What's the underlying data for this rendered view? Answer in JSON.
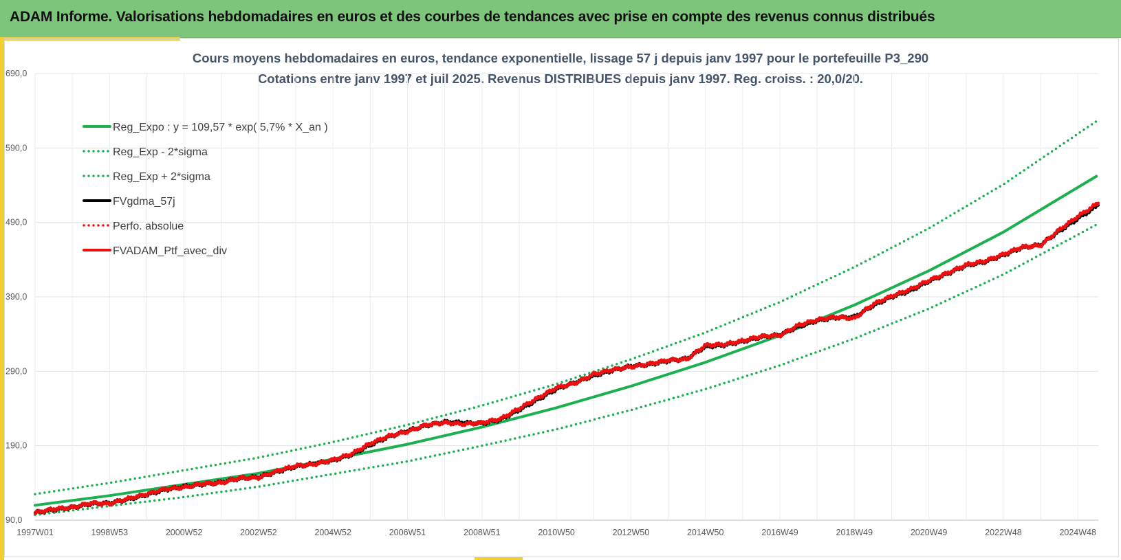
{
  "header": {
    "title": "ADAM Informe. Valorisations hebdomadaires en euros et des courbes de tendances avec prise en compte des revenus connus distribués"
  },
  "colors": {
    "banner": "#7dc57a",
    "accent": "#f2cf2f",
    "trend": "#1db050",
    "fvgdma": "#000000",
    "portfolio": "#ee1010"
  },
  "chart_data": {
    "type": "line",
    "title": "Cours moyens hebdomadaires  en euros, tendance exponentielle, lissage 57 j depuis janv 1997 pour le portefeuille P3_290",
    "subtitle": "Cotations entre janv 1997 et juil 2025. Revenus DISTRIBUES depuis janv 1997. Reg. croiss. : 20,0/20.",
    "xlabel": "",
    "ylabel": "",
    "x_tick_labels": [
      "1997W01",
      "1998W53",
      "2000W52",
      "2002W52",
      "2004W52",
      "2006W51",
      "2008W51",
      "2010W50",
      "2012W50",
      "2014W50",
      "2016W49",
      "2018W49",
      "2020W49",
      "2022W48",
      "2024W48"
    ],
    "x_ticks_year": [
      1997.0,
      1999.0,
      2001.0,
      2003.0,
      2005.0,
      2007.0,
      2009.0,
      2011.0,
      2013.0,
      2015.0,
      2017.0,
      2019.0,
      2021.0,
      2023.0,
      2025.0
    ],
    "xlim_year": [
      1997.0,
      2025.55
    ],
    "y_ticks": [
      90,
      190,
      290,
      390,
      490,
      590,
      690
    ],
    "y_tick_labels": [
      "90,0",
      "190,0",
      "290,0",
      "390,0",
      "490,0",
      "590,0",
      "690,0"
    ],
    "ylim": [
      90,
      690
    ],
    "grid": true,
    "legend_position": "top-left",
    "series": [
      {
        "name": "Reg_Expo : y = 109,57 * exp( 5,7% *  X_an )",
        "style": "solid",
        "color": "#1db050",
        "x": [
          1997.0,
          1999.0,
          2001.0,
          2003.0,
          2005.0,
          2007.0,
          2009.0,
          2011.0,
          2013.0,
          2015.0,
          2017.0,
          2019.0,
          2021.0,
          2023.0,
          2025.5
        ],
        "values": [
          110,
          123,
          138,
          153,
          172,
          192,
          215,
          241,
          270,
          302,
          338,
          379,
          425,
          477,
          552
        ]
      },
      {
        "name": "Reg_Exp - 2*sigma",
        "style": "dotted",
        "color": "#1db050",
        "x": [
          1997.0,
          1999.0,
          2001.0,
          2003.0,
          2005.0,
          2007.0,
          2009.0,
          2011.0,
          2013.0,
          2015.0,
          2017.0,
          2019.0,
          2021.0,
          2023.0,
          2025.5
        ],
        "values": [
          97,
          109,
          121,
          135,
          152,
          169,
          190,
          212,
          238,
          266,
          298,
          334,
          374,
          420,
          487
        ]
      },
      {
        "name": "Reg_Exp + 2*sigma",
        "style": "dotted",
        "color": "#1db050",
        "x": [
          1997.0,
          1999.0,
          2001.0,
          2003.0,
          2005.0,
          2007.0,
          2009.0,
          2011.0,
          2013.0,
          2015.0,
          2017.0,
          2019.0,
          2021.0,
          2023.0,
          2025.5
        ],
        "values": [
          125,
          140,
          157,
          174,
          195,
          218,
          244,
          273,
          306,
          342,
          383,
          430,
          482,
          541,
          626
        ]
      },
      {
        "name": "FVgdma_57j",
        "style": "solid",
        "color": "#000000",
        "x": [
          1997.0,
          1997.5,
          1998.0,
          1998.5,
          1999.0,
          1999.5,
          2000.0,
          2000.5,
          2001.0,
          2001.5,
          2002.0,
          2002.5,
          2003.0,
          2003.5,
          2004.0,
          2004.5,
          2005.0,
          2005.5,
          2006.0,
          2006.5,
          2007.0,
          2007.5,
          2008.0,
          2008.5,
          2009.0,
          2009.5,
          2010.0,
          2010.5,
          2011.0,
          2011.5,
          2012.0,
          2012.5,
          2013.0,
          2013.5,
          2014.0,
          2014.5,
          2015.0,
          2015.5,
          2016.0,
          2016.5,
          2017.0,
          2017.5,
          2018.0,
          2018.5,
          2019.0,
          2019.5,
          2020.0,
          2020.5,
          2021.0,
          2021.5,
          2022.0,
          2022.5,
          2023.0,
          2023.5,
          2024.0,
          2024.5,
          2025.0,
          2025.55
        ],
        "values": [
          100,
          104,
          107,
          112,
          113,
          118,
          124,
          131,
          135,
          138,
          141,
          146,
          148,
          155,
          162,
          166,
          170,
          178,
          191,
          202,
          210,
          217,
          222,
          221,
          220,
          225,
          238,
          252,
          266,
          275,
          284,
          291,
          297,
          299,
          304,
          307,
          323,
          325,
          330,
          336,
          339,
          350,
          358,
          362,
          363,
          378,
          390,
          398,
          411,
          421,
          432,
          437,
          446,
          456,
          460,
          478,
          495,
          513
        ]
      },
      {
        "name": "Perfo. absolue",
        "style": "dotted",
        "color": "#ee1010",
        "x": [
          1997.0,
          1999.0,
          2001.0,
          2003.0,
          2005.0,
          2007.0,
          2009.0,
          2011.0,
          2013.0,
          2015.0,
          2017.0,
          2019.0,
          2021.0,
          2023.0,
          2025.55
        ],
        "values": [
          100,
          113,
          135,
          148,
          170,
          210,
          220,
          266,
          297,
          323,
          339,
          363,
          411,
          446,
          513
        ]
      },
      {
        "name": "FVADAM_Ptf_avec_div",
        "style": "solid",
        "color": "#ee1010",
        "x": [
          1997.0,
          1997.5,
          1998.0,
          1998.5,
          1999.0,
          1999.5,
          2000.0,
          2000.5,
          2001.0,
          2001.5,
          2002.0,
          2002.5,
          2003.0,
          2003.5,
          2004.0,
          2004.5,
          2005.0,
          2005.5,
          2006.0,
          2006.5,
          2007.0,
          2007.5,
          2008.0,
          2008.5,
          2009.0,
          2009.5,
          2010.0,
          2010.5,
          2011.0,
          2011.5,
          2012.0,
          2012.5,
          2013.0,
          2013.5,
          2014.0,
          2014.5,
          2015.0,
          2015.5,
          2016.0,
          2016.5,
          2017.0,
          2017.5,
          2018.0,
          2018.5,
          2019.0,
          2019.5,
          2020.0,
          2020.5,
          2021.0,
          2021.5,
          2022.0,
          2022.5,
          2023.0,
          2023.5,
          2024.0,
          2024.5,
          2025.0,
          2025.55
        ],
        "values": [
          100,
          105,
          107,
          113,
          112,
          119,
          125,
          132,
          134,
          139,
          140,
          147,
          147,
          156,
          163,
          165,
          171,
          179,
          193,
          203,
          209,
          218,
          221,
          219,
          221,
          226,
          240,
          254,
          268,
          274,
          286,
          292,
          296,
          300,
          305,
          306,
          325,
          326,
          331,
          337,
          338,
          352,
          359,
          363,
          361,
          380,
          391,
          400,
          412,
          422,
          433,
          438,
          447,
          457,
          459,
          480,
          498,
          516
        ]
      }
    ]
  }
}
